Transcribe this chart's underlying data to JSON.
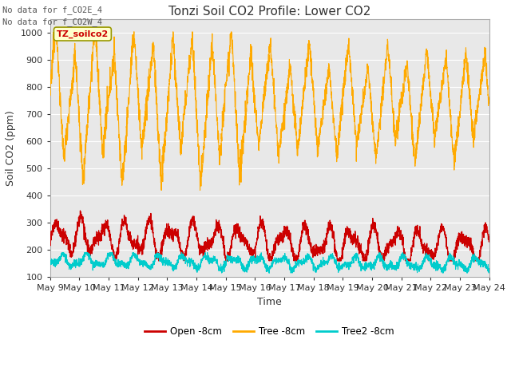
{
  "title": "Tonzi Soil CO2 Profile: Lower CO2",
  "ylabel": "Soil CO2 (ppm)",
  "xlabel": "Time",
  "ylim": [
    100,
    1050
  ],
  "yticks": [
    100,
    200,
    300,
    400,
    500,
    600,
    700,
    800,
    900,
    1000
  ],
  "xtick_labels": [
    "May 9",
    "May 10",
    "May 11",
    "May 12",
    "May 13",
    "May 14",
    "May 15",
    "May 16",
    "May 17",
    "May 18",
    "May 19",
    "May 20",
    "May 21",
    "May 22",
    "May 23",
    "May 24"
  ],
  "no_data_text1": "No data for f_CO2E_4",
  "no_data_text2": "No data for f_CO2W_4",
  "legend_label1": "Open -8cm",
  "legend_label2": "Tree -8cm",
  "legend_label3": "Tree2 -8cm",
  "color_open": "#cc0000",
  "color_tree": "#ffaa00",
  "color_tree2": "#00cccc",
  "box_label": "TZ_soilco2",
  "box_facecolor": "#ffffcc",
  "box_edgecolor": "#999900",
  "background_color": "#ffffff",
  "plot_bg_color": "#e8e8e8",
  "grid_color": "#ffffff",
  "title_fontsize": 11,
  "axis_fontsize": 9,
  "tick_fontsize": 8,
  "n_points": 3000
}
